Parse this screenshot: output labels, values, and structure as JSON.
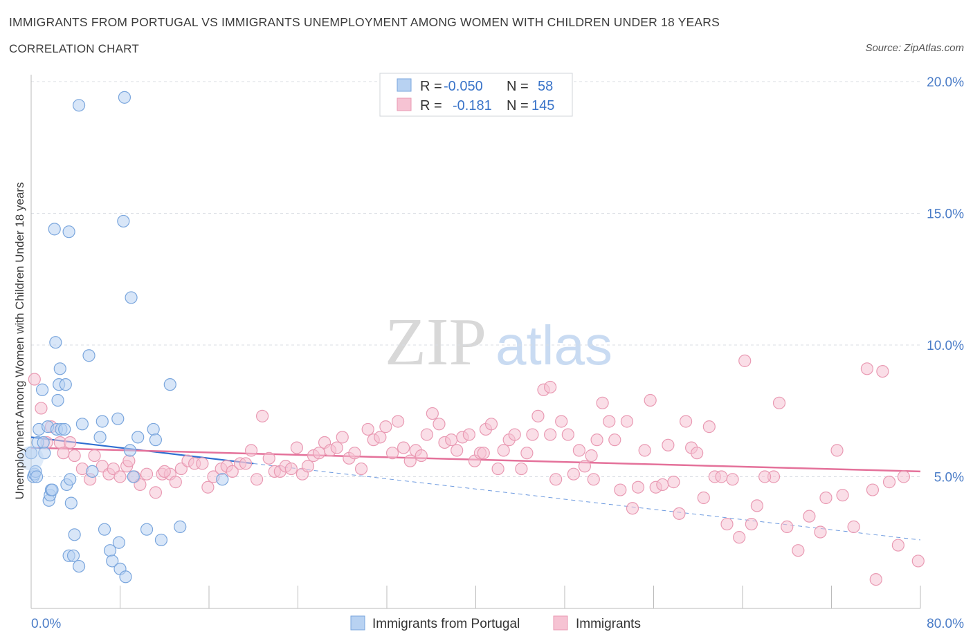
{
  "title": "IMMIGRANTS FROM PORTUGAL VS IMMIGRANTS UNEMPLOYMENT AMONG WOMEN WITH CHILDREN UNDER 18 YEARS",
  "subtitle": "CORRELATION CHART",
  "source": "Source: ZipAtlas.com",
  "watermark": {
    "zip": "ZIP",
    "atlas": "atlas"
  },
  "colors": {
    "blue_fill": "#b8d2f2",
    "blue_stroke": "#7aa6dd",
    "blue_line": "#2f6fd1",
    "pink_fill": "#f6c3d3",
    "pink_stroke": "#e99ab3",
    "pink_line": "#e4719a",
    "value_text": "#3a74c9",
    "grid": "#d9dde3"
  },
  "legend": {
    "rows": [
      {
        "r_label": "R =",
        "r_value": "-0.050",
        "n_label": "N =",
        "n_value": "58"
      },
      {
        "r_label": "R =",
        "r_value": "-0.181",
        "n_label": "N =",
        "n_value": "145"
      }
    ]
  },
  "bottom_legend": [
    "Immigrants from Portugal",
    "Immigrants"
  ],
  "chart_data": {
    "type": "scatter",
    "title": "IMMIGRANTS FROM PORTUGAL VS IMMIGRANTS UNEMPLOYMENT AMONG WOMEN WITH CHILDREN UNDER 18 YEARS",
    "xlabel": "",
    "ylabel": "Unemployment Among Women with Children Under 18 years",
    "xlim": [
      0,
      80
    ],
    "ylim": [
      0,
      20
    ],
    "x_tick_labels": [
      "0.0%",
      "80.0%"
    ],
    "y_tick_labels": [
      "5.0%",
      "10.0%",
      "15.0%",
      "20.0%"
    ],
    "y_ticks": [
      5,
      10,
      15,
      20
    ],
    "grid": true,
    "legend_position": "top-center",
    "series": [
      {
        "name": "Immigrants from Portugal",
        "color": "#b8d2f2",
        "trend": {
          "x": [
            0,
            20
          ],
          "y": [
            6.5,
            5.5
          ],
          "extended_to_x": 80,
          "extended_y": 2.6
        },
        "points": [
          [
            0.2,
            5.0
          ],
          [
            0.3,
            5.1
          ],
          [
            0.4,
            5.2
          ],
          [
            0.5,
            5.0
          ],
          [
            0.6,
            6.3
          ],
          [
            0.7,
            6.8
          ],
          [
            1.0,
            8.3
          ],
          [
            1.1,
            6.3
          ],
          [
            1.2,
            5.9
          ],
          [
            1.5,
            6.9
          ],
          [
            1.6,
            4.1
          ],
          [
            1.7,
            4.3
          ],
          [
            1.8,
            4.5
          ],
          [
            1.9,
            4.5
          ],
          [
            2.2,
            10.1
          ],
          [
            2.3,
            6.8
          ],
          [
            2.4,
            7.9
          ],
          [
            2.5,
            8.5
          ],
          [
            2.6,
            9.1
          ],
          [
            2.7,
            6.8
          ],
          [
            3.0,
            6.8
          ],
          [
            3.1,
            8.5
          ],
          [
            3.2,
            4.7
          ],
          [
            3.4,
            2.0
          ],
          [
            3.5,
            4.9
          ],
          [
            3.6,
            4.0
          ],
          [
            3.8,
            2.0
          ],
          [
            3.9,
            2.8
          ],
          [
            4.3,
            1.6
          ],
          [
            4.6,
            7.0
          ],
          [
            2.1,
            14.4
          ],
          [
            3.4,
            14.3
          ],
          [
            4.3,
            19.1
          ],
          [
            5.2,
            9.6
          ],
          [
            5.5,
            5.2
          ],
          [
            6.2,
            6.5
          ],
          [
            6.4,
            7.1
          ],
          [
            6.6,
            3.0
          ],
          [
            7.1,
            2.2
          ],
          [
            7.3,
            1.8
          ],
          [
            7.8,
            7.2
          ],
          [
            7.9,
            2.5
          ],
          [
            8.0,
            1.5
          ],
          [
            8.3,
            14.7
          ],
          [
            8.4,
            19.4
          ],
          [
            8.5,
            1.2
          ],
          [
            8.9,
            6.0
          ],
          [
            9.0,
            11.8
          ],
          [
            9.2,
            5.0
          ],
          [
            9.6,
            6.5
          ],
          [
            10.4,
            3.0
          ],
          [
            11.0,
            6.8
          ],
          [
            11.2,
            6.4
          ],
          [
            11.7,
            2.6
          ],
          [
            12.5,
            8.5
          ],
          [
            13.4,
            3.1
          ],
          [
            17.2,
            4.9
          ],
          [
            0.0,
            5.9
          ]
        ]
      },
      {
        "name": "Immigrants",
        "color": "#f6c3d3",
        "trend": {
          "x": [
            0,
            80
          ],
          "y": [
            6.1,
            5.2
          ]
        },
        "points": [
          [
            0.3,
            8.7
          ],
          [
            0.9,
            7.6
          ],
          [
            1.4,
            6.3
          ],
          [
            1.8,
            6.9
          ],
          [
            2.6,
            6.3
          ],
          [
            2.9,
            5.9
          ],
          [
            3.5,
            6.3
          ],
          [
            3.9,
            5.8
          ],
          [
            4.6,
            5.3
          ],
          [
            5.3,
            4.9
          ],
          [
            5.7,
            5.8
          ],
          [
            6.4,
            5.4
          ],
          [
            7.0,
            5.1
          ],
          [
            7.4,
            5.3
          ],
          [
            8.0,
            5.0
          ],
          [
            8.6,
            5.4
          ],
          [
            9.3,
            5.0
          ],
          [
            9.8,
            4.7
          ],
          [
            10.4,
            5.1
          ],
          [
            11.2,
            4.4
          ],
          [
            11.8,
            5.1
          ],
          [
            12.5,
            5.1
          ],
          [
            13.0,
            4.8
          ],
          [
            13.5,
            5.3
          ],
          [
            14.1,
            5.6
          ],
          [
            14.7,
            5.5
          ],
          [
            15.4,
            5.5
          ],
          [
            15.9,
            4.6
          ],
          [
            16.4,
            5.0
          ],
          [
            17.1,
            5.3
          ],
          [
            17.6,
            5.4
          ],
          [
            18.1,
            5.2
          ],
          [
            18.8,
            5.5
          ],
          [
            19.3,
            5.5
          ],
          [
            19.8,
            6.0
          ],
          [
            20.3,
            4.9
          ],
          [
            20.8,
            7.3
          ],
          [
            21.4,
            5.7
          ],
          [
            21.9,
            5.2
          ],
          [
            22.4,
            5.2
          ],
          [
            22.9,
            5.4
          ],
          [
            23.4,
            5.3
          ],
          [
            23.9,
            6.1
          ],
          [
            24.4,
            5.1
          ],
          [
            24.9,
            5.4
          ],
          [
            25.4,
            5.8
          ],
          [
            25.9,
            5.9
          ],
          [
            26.4,
            6.3
          ],
          [
            26.9,
            6.0
          ],
          [
            27.5,
            6.1
          ],
          [
            28.0,
            6.5
          ],
          [
            28.6,
            5.7
          ],
          [
            29.1,
            5.9
          ],
          [
            29.7,
            5.3
          ],
          [
            30.3,
            6.8
          ],
          [
            30.8,
            6.4
          ],
          [
            31.4,
            6.5
          ],
          [
            31.9,
            6.9
          ],
          [
            32.5,
            5.9
          ],
          [
            33.0,
            7.1
          ],
          [
            33.5,
            6.1
          ],
          [
            34.1,
            5.6
          ],
          [
            34.6,
            6.0
          ],
          [
            35.1,
            5.8
          ],
          [
            35.6,
            6.6
          ],
          [
            36.1,
            7.4
          ],
          [
            36.7,
            7.0
          ],
          [
            37.2,
            6.3
          ],
          [
            37.8,
            6.4
          ],
          [
            38.3,
            6.0
          ],
          [
            38.8,
            6.5
          ],
          [
            39.4,
            6.6
          ],
          [
            39.9,
            5.6
          ],
          [
            40.4,
            5.9
          ],
          [
            40.9,
            6.8
          ],
          [
            41.4,
            7.0
          ],
          [
            42.0,
            5.3
          ],
          [
            42.5,
            6.0
          ],
          [
            43.0,
            6.4
          ],
          [
            43.5,
            6.6
          ],
          [
            44.1,
            5.3
          ],
          [
            44.6,
            5.9
          ],
          [
            45.1,
            6.6
          ],
          [
            45.6,
            7.3
          ],
          [
            46.1,
            8.3
          ],
          [
            46.7,
            6.6
          ],
          [
            47.2,
            4.9
          ],
          [
            47.7,
            7.1
          ],
          [
            48.3,
            6.6
          ],
          [
            48.8,
            5.1
          ],
          [
            49.3,
            6.0
          ],
          [
            49.8,
            5.4
          ],
          [
            50.4,
            5.8
          ],
          [
            50.9,
            6.4
          ],
          [
            51.4,
            7.8
          ],
          [
            52.0,
            7.1
          ],
          [
            52.5,
            6.4
          ],
          [
            53.0,
            4.5
          ],
          [
            53.6,
            7.1
          ],
          [
            54.1,
            3.8
          ],
          [
            54.6,
            4.6
          ],
          [
            55.2,
            6.0
          ],
          [
            55.7,
            7.9
          ],
          [
            56.2,
            4.6
          ],
          [
            56.8,
            4.7
          ],
          [
            57.3,
            6.2
          ],
          [
            57.8,
            4.8
          ],
          [
            58.3,
            3.6
          ],
          [
            58.9,
            7.1
          ],
          [
            59.4,
            6.1
          ],
          [
            59.9,
            5.9
          ],
          [
            60.5,
            4.2
          ],
          [
            61.0,
            6.9
          ],
          [
            61.5,
            5.0
          ],
          [
            62.1,
            5.0
          ],
          [
            62.6,
            3.2
          ],
          [
            63.1,
            4.9
          ],
          [
            63.7,
            2.7
          ],
          [
            64.2,
            9.4
          ],
          [
            64.8,
            3.2
          ],
          [
            65.3,
            3.9
          ],
          [
            66.8,
            5.0
          ],
          [
            67.3,
            7.8
          ],
          [
            68.0,
            3.1
          ],
          [
            69.0,
            2.2
          ],
          [
            70.0,
            3.5
          ],
          [
            71.0,
            2.9
          ],
          [
            71.5,
            4.2
          ],
          [
            72.5,
            6.0
          ],
          [
            73.0,
            4.3
          ],
          [
            74.0,
            3.1
          ],
          [
            75.2,
            9.1
          ],
          [
            75.7,
            4.5
          ],
          [
            76.0,
            1.1
          ],
          [
            77.2,
            4.8
          ],
          [
            78.0,
            2.4
          ],
          [
            78.5,
            5.0
          ],
          [
            79.8,
            1.8
          ],
          [
            8.8,
            5.6
          ],
          [
            76.6,
            9.0
          ],
          [
            46.7,
            8.4
          ],
          [
            50.6,
            4.9
          ],
          [
            40.7,
            5.9
          ],
          [
            12.0,
            5.2
          ],
          [
            66.0,
            5.0
          ]
        ]
      }
    ]
  }
}
